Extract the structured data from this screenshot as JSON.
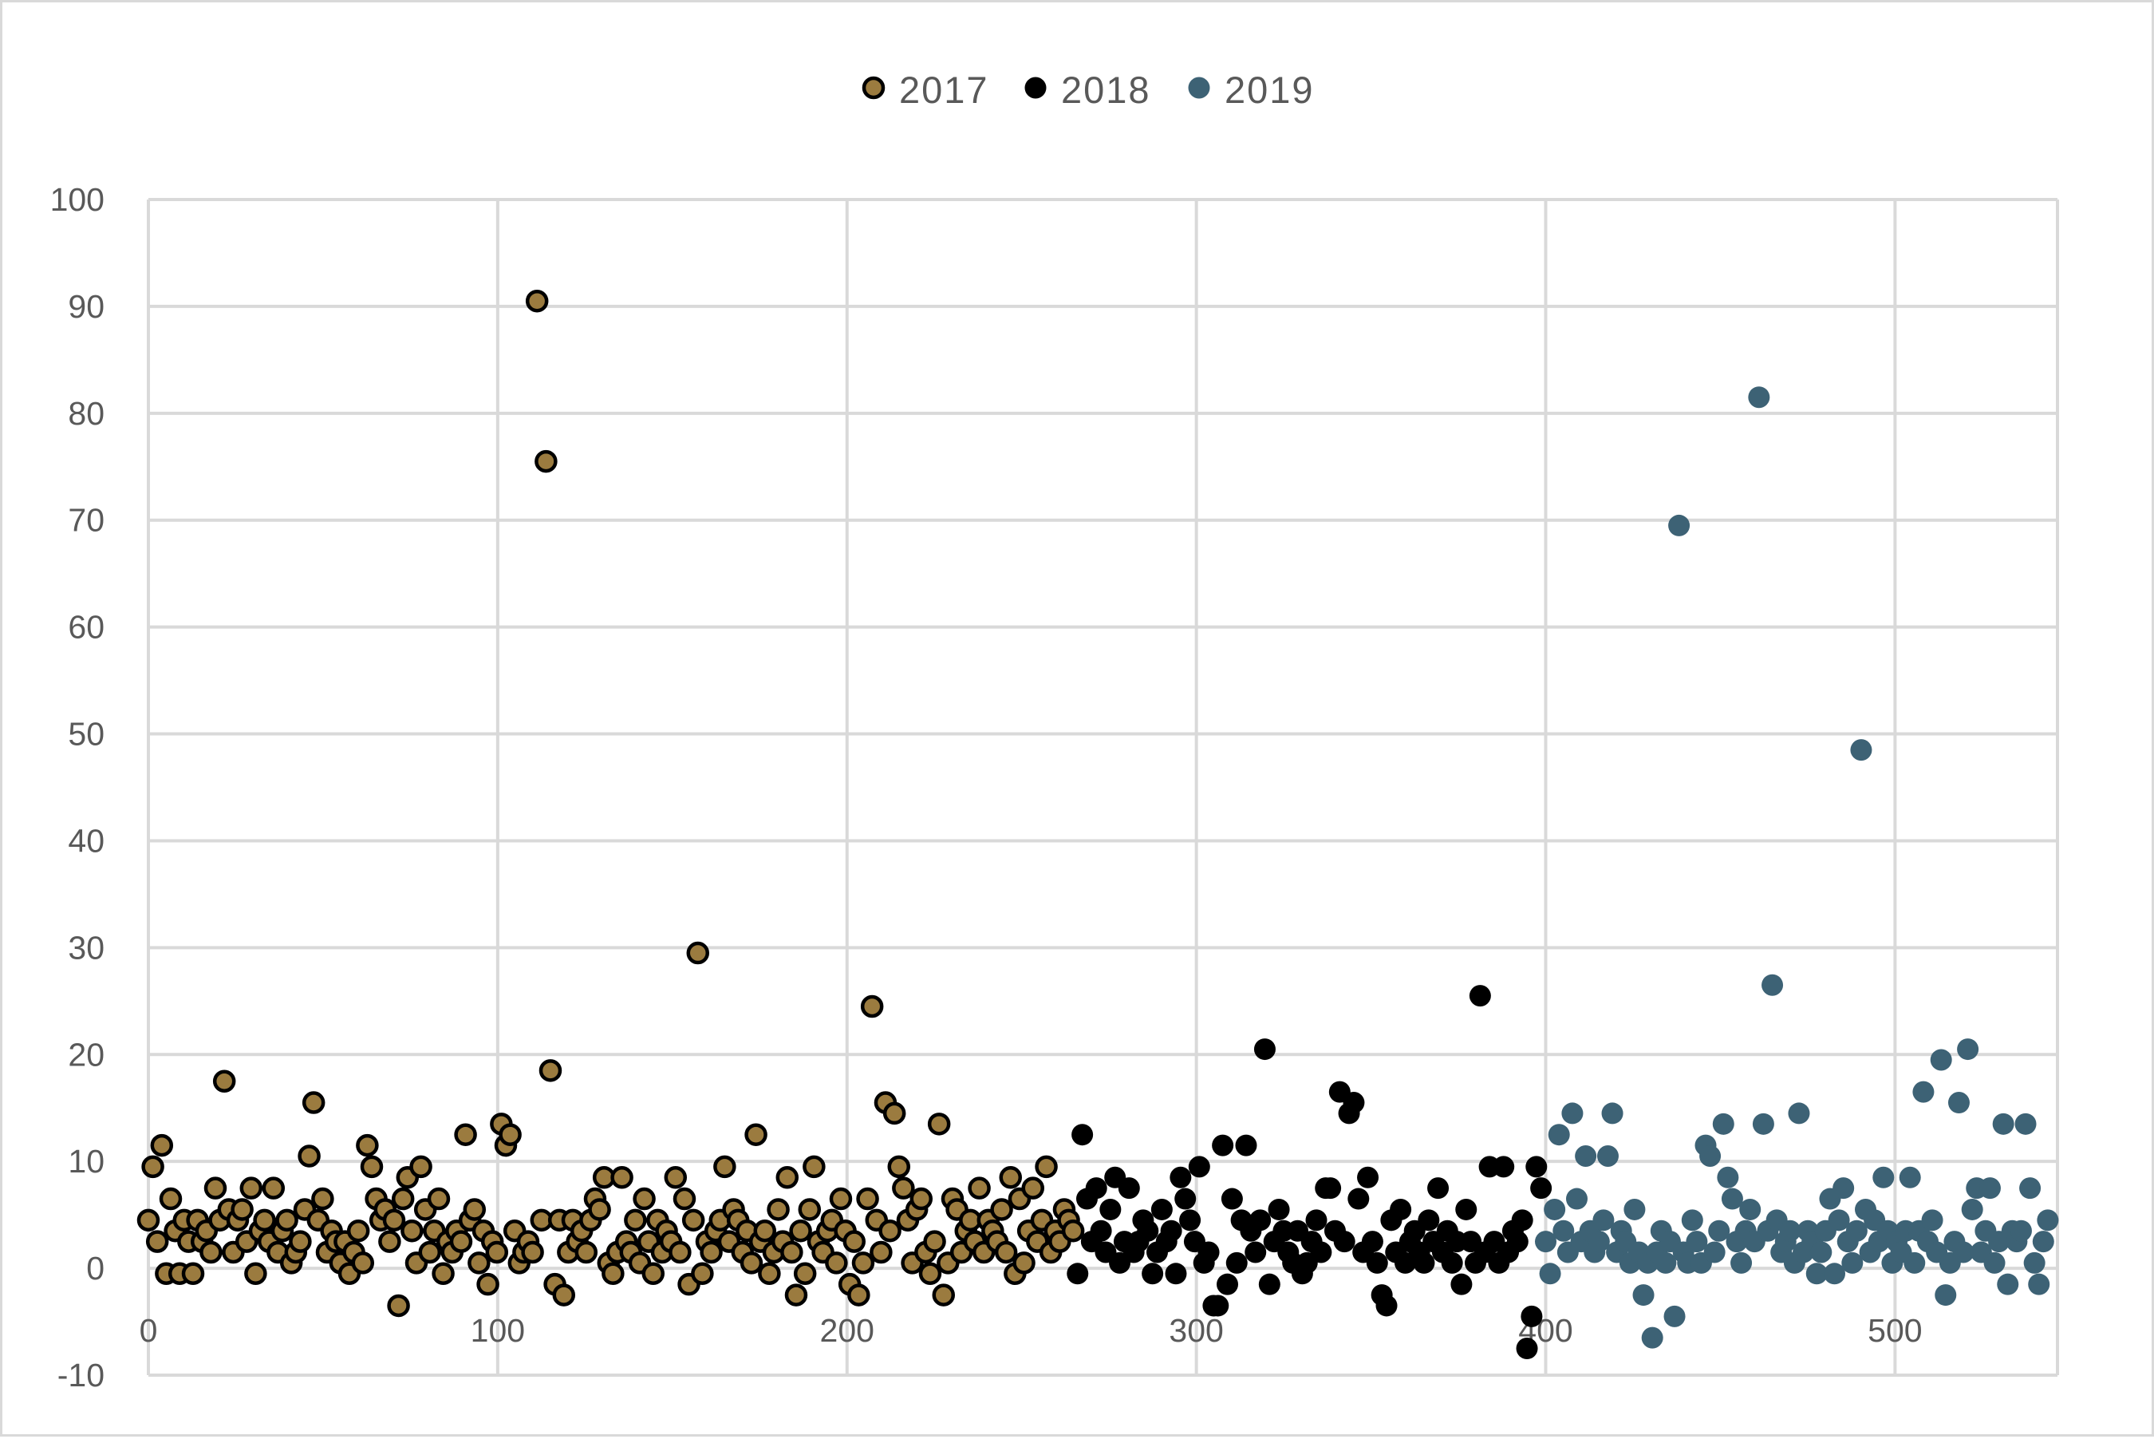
{
  "chart_data": {
    "type": "scatter",
    "title": "",
    "xlabel": "",
    "ylabel": "",
    "xlim": [
      0,
      550
    ],
    "ylim": [
      -10,
      100
    ],
    "x_ticks": [
      0,
      100,
      200,
      300,
      400,
      500
    ],
    "y_ticks": [
      -10,
      0,
      10,
      20,
      30,
      40,
      50,
      60,
      70,
      80,
      90,
      100
    ],
    "grid": true,
    "legend_position": "top-center",
    "series": [
      {
        "name": "2017",
        "color": "#9b7b3f",
        "edge_color": "#000000",
        "x_start": 0,
        "y": [
          4.5,
          9.5,
          2.5,
          11.5,
          -0.5,
          6.5,
          3.5,
          -0.5,
          4.5,
          2.5,
          -0.5,
          4.5,
          2.5,
          3.5,
          1.5,
          7.5,
          4.5,
          17.5,
          5.5,
          1.5,
          4.5,
          5.5,
          2.5,
          7.5,
          -0.5,
          3.5,
          4.5,
          2.5,
          7.5,
          1.5,
          3.5,
          4.5,
          0.5,
          1.5,
          2.5,
          5.5,
          10.5,
          15.5,
          4.5,
          6.5,
          1.5,
          3.5,
          2.5,
          0.5,
          2.5,
          -0.5,
          1.5,
          3.5,
          0.5,
          11.5,
          9.5,
          6.5,
          4.5,
          5.5,
          2.5,
          4.5,
          -3.5,
          6.5,
          8.5,
          3.5,
          0.5,
          9.5,
          5.5,
          1.5,
          3.5,
          6.5,
          -0.5,
          2.5,
          1.5,
          3.5,
          2.5,
          12.5,
          4.5,
          5.5,
          0.5,
          3.5,
          -1.5,
          2.5,
          1.5,
          13.5,
          11.5,
          12.5,
          3.5,
          0.5,
          1.5,
          2.5,
          1.5,
          90.5,
          4.5,
          75.5,
          18.5,
          -1.5,
          4.5,
          -2.5,
          1.5,
          4.5,
          2.5,
          3.5,
          1.5,
          4.5,
          6.5,
          5.5,
          8.5,
          0.5,
          -0.5,
          1.5,
          8.5,
          2.5,
          1.5,
          4.5,
          0.5,
          6.5,
          2.5,
          -0.5,
          4.5,
          1.5,
          3.5,
          2.5,
          8.5,
          1.5,
          6.5,
          -1.5,
          4.5,
          29.5,
          -0.5,
          2.5,
          1.5,
          3.5,
          4.5,
          9.5,
          2.5,
          5.5,
          4.5,
          1.5,
          3.5,
          0.5,
          12.5,
          2.5,
          3.5,
          -0.5,
          1.5,
          5.5,
          2.5,
          8.5,
          1.5,
          -2.5,
          3.5,
          -0.5,
          5.5,
          9.5,
          2.5,
          1.5,
          3.5,
          4.5,
          0.5,
          6.5,
          3.5,
          -1.5,
          2.5,
          -2.5,
          0.5,
          6.5,
          24.5,
          4.5,
          1.5,
          15.5,
          3.5,
          14.5,
          9.5,
          7.5,
          4.5,
          0.5,
          5.5,
          6.5,
          1.5,
          -0.5,
          2.5,
          13.5,
          -2.5,
          0.5,
          6.5,
          5.5,
          1.5,
          3.5,
          4.5,
          2.5,
          7.5,
          1.5,
          4.5,
          3.5,
          2.5,
          5.5,
          1.5,
          8.5,
          -0.5,
          6.5,
          0.5,
          3.5,
          7.5,
          2.5,
          4.5,
          9.5,
          1.5,
          3.5,
          2.5,
          5.5,
          4.5,
          3.5
        ]
      },
      {
        "name": "2018",
        "color": "#000000",
        "edge_color": "#000000",
        "x_start": 266,
        "y": [
          -0.5,
          12.5,
          6.5,
          2.5,
          7.5,
          3.5,
          1.5,
          5.5,
          8.5,
          0.5,
          2.5,
          7.5,
          1.5,
          2.5,
          4.5,
          3.5,
          -0.5,
          1.5,
          5.5,
          2.5,
          3.5,
          -0.5,
          8.5,
          6.5,
          4.5,
          2.5,
          9.5,
          0.5,
          1.5,
          -3.5,
          -3.5,
          11.5,
          -1.5,
          6.5,
          0.5,
          4.5,
          11.5,
          3.5,
          1.5,
          4.5,
          20.5,
          -1.5,
          2.5,
          5.5,
          3.5,
          1.5,
          0.5,
          3.5,
          -0.5,
          0.5,
          2.5,
          4.5,
          1.5,
          7.5,
          7.5,
          3.5,
          16.5,
          2.5,
          14.5,
          15.5,
          6.5,
          1.5,
          8.5,
          2.5,
          0.5,
          -2.5,
          -3.5,
          4.5,
          1.5,
          5.5,
          0.5,
          2.5,
          3.5,
          1.5,
          0.5,
          4.5,
          2.5,
          7.5,
          1.5,
          3.5,
          0.5,
          2.5,
          -1.5,
          5.5,
          2.5,
          0.5,
          25.5,
          1.5,
          9.5,
          2.5,
          0.5,
          9.5,
          1.5,
          3.5,
          2.5,
          4.5,
          -7.5,
          -4.5,
          9.5,
          7.5
        ]
      },
      {
        "name": "2019",
        "color": "#3d6275",
        "edge_color": "#3d6275",
        "x_start": 400,
        "y": [
          2.5,
          -0.5,
          5.5,
          12.5,
          3.5,
          1.5,
          14.5,
          6.5,
          2.5,
          10.5,
          3.5,
          1.5,
          2.5,
          4.5,
          10.5,
          14.5,
          1.5,
          3.5,
          2.5,
          0.5,
          5.5,
          1.5,
          -2.5,
          0.5,
          -6.5,
          1.5,
          3.5,
          0.5,
          2.5,
          -4.5,
          69.5,
          1.5,
          0.5,
          4.5,
          2.5,
          0.5,
          11.5,
          10.5,
          1.5,
          3.5,
          13.5,
          8.5,
          6.5,
          2.5,
          0.5,
          3.5,
          5.5,
          2.5,
          81.5,
          13.5,
          3.5,
          26.5,
          4.5,
          1.5,
          2.5,
          3.5,
          0.5,
          14.5,
          1.5,
          3.5,
          2.5,
          -0.5,
          1.5,
          3.5,
          6.5,
          -0.5,
          4.5,
          7.5,
          2.5,
          0.5,
          3.5,
          48.5,
          5.5,
          1.5,
          4.5,
          2.5,
          8.5,
          3.5,
          0.5,
          2.5,
          1.5,
          3.5,
          8.5,
          0.5,
          3.5,
          16.5,
          2.5,
          4.5,
          1.5,
          19.5,
          -2.5,
          0.5,
          2.5,
          15.5,
          1.5,
          20.5,
          5.5,
          7.5,
          1.5,
          3.5,
          7.5,
          0.5,
          2.5,
          13.5,
          -1.5,
          3.5,
          2.5,
          3.5,
          13.5,
          7.5,
          0.5,
          -1.5,
          2.5,
          4.5
        ]
      }
    ]
  }
}
